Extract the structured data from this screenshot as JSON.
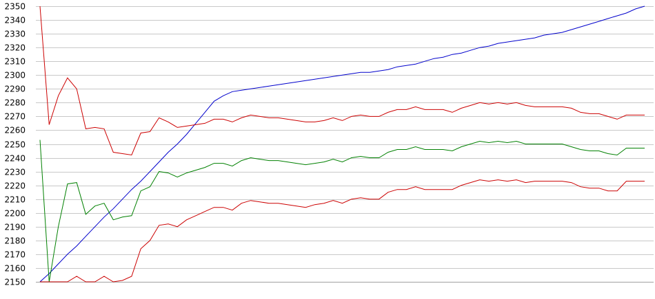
{
  "chart_data": {
    "type": "line",
    "title": "",
    "xlabel": "",
    "ylabel": "",
    "ylim": [
      2150,
      2350
    ],
    "y_ticks": [
      2150,
      2160,
      2170,
      2180,
      2190,
      2200,
      2210,
      2220,
      2230,
      2240,
      2250,
      2260,
      2270,
      2280,
      2290,
      2300,
      2310,
      2320,
      2330,
      2340,
      2350
    ],
    "grid": true,
    "legend": "none",
    "x": [
      0,
      1,
      2,
      3,
      4,
      5,
      6,
      7,
      8,
      9,
      10,
      11,
      12,
      13,
      14,
      15,
      16,
      17,
      18,
      19,
      20,
      21,
      22,
      23,
      24,
      25,
      26,
      27,
      28,
      29,
      30,
      31,
      32,
      33,
      34,
      35,
      36,
      37,
      38,
      39,
      40,
      41,
      42,
      43,
      44,
      45,
      46,
      47,
      48,
      49,
      50,
      51,
      52,
      53,
      54,
      55,
      56,
      57,
      58,
      59,
      60,
      61,
      62,
      63,
      64,
      65,
      66
    ],
    "series": [
      {
        "color": "#0000cc",
        "values": [
          2150,
          2156,
          2163,
          2170,
          2176,
          2183,
          2190,
          2197,
          2203,
          2210,
          2217,
          2223,
          2230,
          2237,
          2244,
          2250,
          2257,
          2265,
          2273,
          2281,
          2285,
          2288,
          2289,
          2290,
          2291,
          2292,
          2293,
          2294,
          2295,
          2296,
          2297,
          2298,
          2299,
          2300,
          2301,
          2302,
          2302,
          2303,
          2304,
          2306,
          2307,
          2308,
          2310,
          2312,
          2313,
          2315,
          2316,
          2318,
          2320,
          2321,
          2323,
          2324,
          2325,
          2326,
          2327,
          2329,
          2330,
          2331,
          2333,
          2335,
          2337,
          2339,
          2341,
          2343,
          2345,
          2348,
          2350
        ]
      },
      {
        "color": "#cc0000",
        "values": [
          2350,
          2264,
          2285,
          2298,
          2290,
          2261,
          2262,
          2261,
          2244,
          2243,
          2242,
          2258,
          2259,
          2269,
          2266,
          2262,
          2263,
          2264,
          2265,
          2268,
          2268,
          2266,
          2269,
          2271,
          2270,
          2269,
          2269,
          2268,
          2267,
          2266,
          2266,
          2267,
          2269,
          2267,
          2270,
          2271,
          2270,
          2270,
          2273,
          2275,
          2275,
          2277,
          2275,
          2275,
          2275,
          2273,
          2276,
          2278,
          2280,
          2279,
          2280,
          2279,
          2280,
          2278,
          2277,
          2277,
          2277,
          2277,
          2276,
          2273,
          2272,
          2272,
          2270,
          2268,
          2271,
          2271,
          2271
        ]
      },
      {
        "color": "#008000",
        "values": [
          2253,
          2150,
          2190,
          2221,
          2222,
          2199,
          2205,
          2207,
          2195,
          2197,
          2198,
          2216,
          2219,
          2230,
          2229,
          2226,
          2229,
          2231,
          2233,
          2236,
          2236,
          2234,
          2238,
          2240,
          2239,
          2238,
          2238,
          2237,
          2236,
          2235,
          2236,
          2237,
          2239,
          2237,
          2240,
          2241,
          2240,
          2240,
          2244,
          2246,
          2246,
          2248,
          2246,
          2246,
          2246,
          2245,
          2248,
          2250,
          2252,
          2251,
          2252,
          2251,
          2252,
          2250,
          2250,
          2250,
          2250,
          2250,
          2248,
          2246,
          2245,
          2245,
          2243,
          2242,
          2247,
          2247,
          2247
        ]
      },
      {
        "color": "#cc0000",
        "values": [
          2150,
          2150,
          2150,
          2150,
          2154,
          2150,
          2150,
          2154,
          2150,
          2151,
          2154,
          2174,
          2180,
          2191,
          2192,
          2190,
          2195,
          2198,
          2201,
          2204,
          2204,
          2202,
          2207,
          2209,
          2208,
          2207,
          2207,
          2206,
          2205,
          2204,
          2206,
          2207,
          2209,
          2207,
          2210,
          2211,
          2210,
          2210,
          2215,
          2217,
          2217,
          2219,
          2217,
          2217,
          2217,
          2217,
          2220,
          2222,
          2224,
          2223,
          2224,
          2223,
          2224,
          2222,
          2223,
          2223,
          2223,
          2223,
          2222,
          2219,
          2218,
          2218,
          2216,
          2216,
          2223,
          2223,
          2223
        ]
      }
    ]
  }
}
